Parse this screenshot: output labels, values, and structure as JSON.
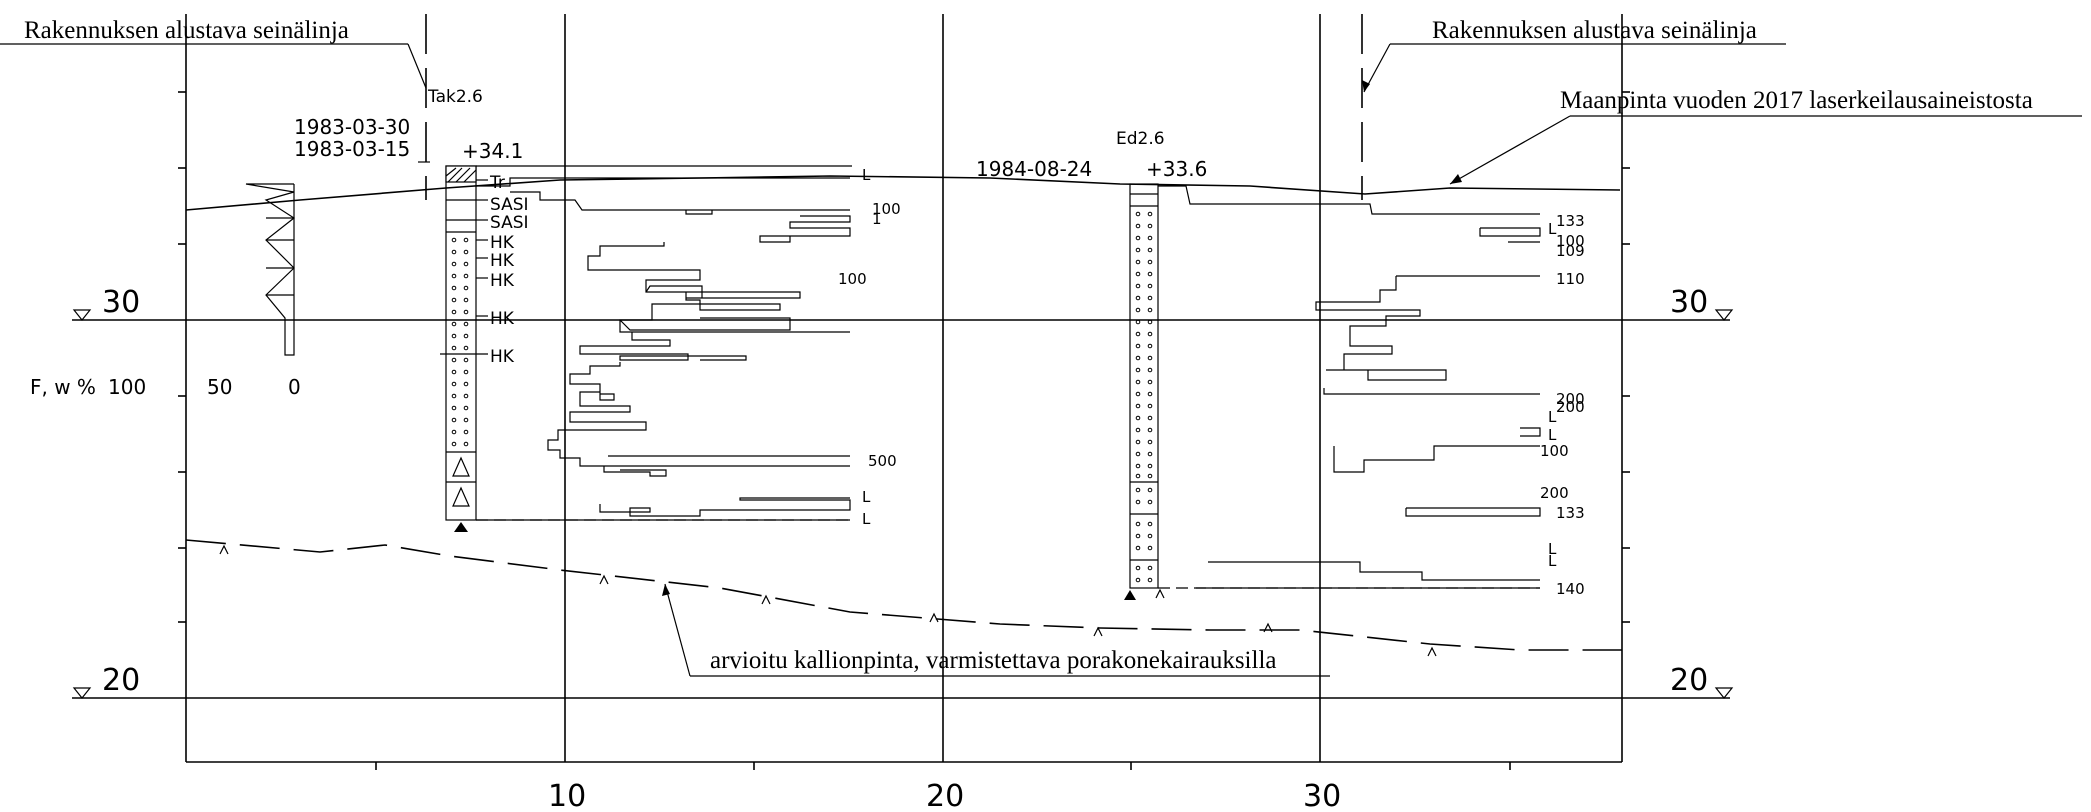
{
  "annotations": {
    "wall_line_left": "Rakennuksen alustava seinälinja",
    "wall_line_right": "Rakennuksen alustava seinälinja",
    "ground_surface": "Maanpinta vuoden 2017 laserkeilausaineistosta",
    "bedrock_estimate": "arvioitu kallionpinta, varmistettava porakonekairauksilla"
  },
  "axis": {
    "x_ticks": [
      "10",
      "20",
      "30"
    ],
    "levels": [
      {
        "value": "30",
        "left": "30",
        "right": "30"
      },
      {
        "value": "20",
        "left": "20",
        "right": "20"
      }
    ],
    "fw_scale": {
      "label": "F, w %",
      "ticks": [
        "100",
        "50",
        "0"
      ]
    }
  },
  "boreholes": [
    {
      "id": "Tak2.6",
      "dates": [
        "1983-03-30",
        "1983-03-15"
      ],
      "elevation": "+34.1",
      "soil_labels": [
        "Tr",
        "SASI",
        "SASI",
        "HK",
        "HK",
        "HK",
        "HK",
        "HK"
      ],
      "resistance_labels": [
        "L",
        "100",
        "1",
        "100",
        "500",
        "L",
        "L"
      ]
    },
    {
      "id": "Ed2.6",
      "date": "1984-08-24",
      "elevation": "+33.6",
      "resistance_labels": [
        "133",
        "L",
        "100",
        "109",
        "110",
        "200",
        "200",
        "L",
        "L",
        "100",
        "200",
        "133",
        "L",
        "L",
        "140"
      ]
    }
  ]
}
